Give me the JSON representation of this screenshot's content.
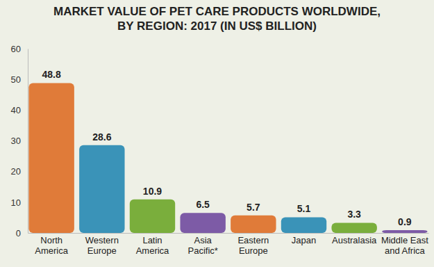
{
  "chart_data": {
    "type": "bar",
    "title": "MARKET VALUE OF PET CARE PRODUCTS WORLDWIDE, BY REGION: 2017 (IN US$ BILLION)",
    "categories": [
      "North America",
      "Western Europe",
      "Latin America",
      "Asia Pacific*",
      "Eastern Europe",
      "Japan",
      "Australasia",
      "Middle East and Africa"
    ],
    "values": [
      48.8,
      28.6,
      10.9,
      6.5,
      5.7,
      5.1,
      3.3,
      0.9
    ],
    "colors": [
      "#e07b39",
      "#3a93b8",
      "#7aae3c",
      "#7d5ba6",
      "#e07b39",
      "#3a93b8",
      "#7aae3c",
      "#7d5ba6"
    ],
    "ylim": [
      0,
      60
    ],
    "yticks": [
      0,
      10,
      20,
      30,
      40,
      50,
      60
    ],
    "grid": false,
    "data_labels": true
  }
}
